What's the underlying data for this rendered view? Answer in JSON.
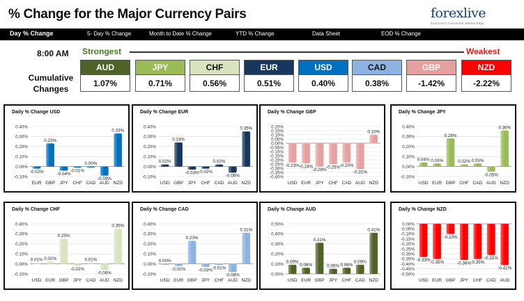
{
  "header": {
    "title": "% Change for the Major Currency Pairs",
    "logo_brand": "forexlive",
    "logo_tagline": "Everyone's Connected. Market Edge."
  },
  "nav": {
    "items": [
      "Day % Change",
      "5- Day % Change",
      "Month to Date % Change",
      "YTD % Change",
      "Data Sheet",
      "EOD % Change"
    ]
  },
  "summary": {
    "time": "8:00 AM",
    "strongest_label": "Strongest",
    "weakest_label": "Weakest",
    "cumulative_label": "Cumulative Changes",
    "currencies": [
      {
        "name": "AUD",
        "value": "1.07%",
        "color": "#4f6228",
        "text_color": "#ffffff"
      },
      {
        "name": "JPY",
        "value": "0.71%",
        "color": "#9bbb59",
        "text_color": "#ffffff"
      },
      {
        "name": "CHF",
        "value": "0.56%",
        "color": "#d7e4bd",
        "text_color": "#111111"
      },
      {
        "name": "EUR",
        "value": "0.51%",
        "color": "#17375e",
        "text_color": "#ffffff"
      },
      {
        "name": "USD",
        "value": "0.40%",
        "color": "#0070c0",
        "text_color": "#ffffff"
      },
      {
        "name": "CAD",
        "value": "0.38%",
        "color": "#8db3e2",
        "text_color": "#111111"
      },
      {
        "name": "GBP",
        "value": "-1.42%",
        "color": "#e6a0a0",
        "text_color": "#ffffff"
      },
      {
        "name": "NZD",
        "value": "-2.22%",
        "color": "#ff0000",
        "text_color": "#ffffff"
      }
    ]
  },
  "chart_data": [
    {
      "type": "bar",
      "title": "Daily % Change USD",
      "categories": [
        "EUR",
        "GBP",
        "JPY",
        "CHF",
        "CAD",
        "AUD",
        "NZD"
      ],
      "values": [
        -0.02,
        0.23,
        -0.04,
        -0.01,
        0.0,
        -0.09,
        0.33
      ],
      "labels": [
        "-0.02%",
        "0.23%",
        "-0.04%",
        "-0.01%",
        "0.00%",
        "-0.09%",
        "0.33%"
      ],
      "ylim": [
        -0.1,
        0.4
      ],
      "step": 0.1,
      "color": "#0070c0"
    },
    {
      "type": "bar",
      "title": "Daily % Change EUR",
      "categories": [
        "USD",
        "GBP",
        "JPY",
        "CHF",
        "CAD",
        "AUD",
        "NZD"
      ],
      "values": [
        0.02,
        0.24,
        -0.03,
        -0.02,
        0.02,
        -0.06,
        0.35
      ],
      "labels": [
        "0.02%",
        "0.24%",
        "-0.03%",
        "-0.02%",
        "0.02%",
        "-0.06%",
        "0.35%"
      ],
      "ylim": [
        -0.1,
        0.4
      ],
      "step": 0.1,
      "color": "#17375e"
    },
    {
      "type": "bar",
      "title": "Daily % Change GBP",
      "categories": [
        "USD",
        "EUR",
        "JPY",
        "CHF",
        "CAD",
        "AUD",
        "NZD"
      ],
      "values": [
        -0.23,
        -0.24,
        -0.28,
        -0.25,
        -0.23,
        -0.31,
        0.1
      ],
      "labels": [
        "-0.23%",
        "-0.24%",
        "-0.28%",
        "-0.25%",
        "-0.23%",
        "-0.31%",
        "0.10%"
      ],
      "ylim": [
        -0.4,
        0.2
      ],
      "step": 0.05,
      "color": "#e6a0a0"
    },
    {
      "type": "bar",
      "title": "Daily % Change JPY",
      "categories": [
        "USD",
        "EUR",
        "GBP",
        "CHF",
        "CAD",
        "AUD",
        "NZD"
      ],
      "values": [
        0.04,
        0.03,
        0.28,
        0.02,
        0.03,
        -0.05,
        0.36
      ],
      "labels": [
        "0.04%",
        "0.03%",
        "0.28%",
        "0.02%",
        "0.03%",
        "-0.05%",
        "0.36%"
      ],
      "ylim": [
        -0.1,
        0.4
      ],
      "step": 0.1,
      "color": "#9bbb59"
    },
    {
      "type": "bar",
      "title": "Daily % Change CHF",
      "categories": [
        "USD",
        "EUR",
        "GBP",
        "JPY",
        "CAD",
        "AUD",
        "NZD"
      ],
      "values": [
        0.01,
        0.02,
        0.25,
        -0.02,
        0.01,
        -0.06,
        0.35
      ],
      "labels": [
        "0.01%",
        "0.02%",
        "0.25%",
        "-0.02%",
        "0.01%",
        "-0.06%",
        "0.35%"
      ],
      "ylim": [
        -0.1,
        0.4
      ],
      "step": 0.1,
      "color": "#d7e4bd"
    },
    {
      "type": "bar",
      "title": "Daily % Change CAD",
      "categories": [
        "USD",
        "EUR",
        "GBP",
        "JPY",
        "CHF",
        "AUD",
        "NZD"
      ],
      "values": [
        0.0,
        -0.02,
        0.23,
        -0.03,
        -0.01,
        -0.08,
        0.31
      ],
      "labels": [
        "0.00%",
        "-0.02%",
        "0.23%",
        "-0.03%",
        "-0.01%",
        "-0.08%",
        "0.31%"
      ],
      "ylim": [
        -0.1,
        0.4
      ],
      "step": 0.1,
      "color": "#8db3e2"
    },
    {
      "type": "bar",
      "title": "Daily % Change AUD",
      "categories": [
        "USD",
        "EUR",
        "GBP",
        "JPY",
        "CHF",
        "CAD",
        "NZD"
      ],
      "values": [
        0.09,
        0.06,
        0.31,
        0.05,
        0.06,
        0.09,
        0.41
      ],
      "labels": [
        "0.09%",
        "0.06%",
        "0.31%",
        "0.05%",
        "0.06%",
        "0.09%",
        "0.41%"
      ],
      "ylim": [
        0.0,
        0.5
      ],
      "step": 0.1,
      "color": "#4f6228"
    },
    {
      "type": "bar",
      "title": "Daily % Change NZD",
      "categories": [
        "USD",
        "EUR",
        "GBP",
        "JPY",
        "CHF",
        "CAD",
        "AUD"
      ],
      "values": [
        -0.33,
        -0.35,
        -0.1,
        -0.36,
        -0.35,
        -0.31,
        -0.41
      ],
      "labels": [
        "-0.33%",
        "-0.35%",
        "-0.10%",
        "-0.36%",
        "-0.35%",
        "-0.31%",
        "-0.41%"
      ],
      "ylim": [
        -0.5,
        0.0
      ],
      "step": 0.05,
      "color": "#ff0000"
    }
  ]
}
